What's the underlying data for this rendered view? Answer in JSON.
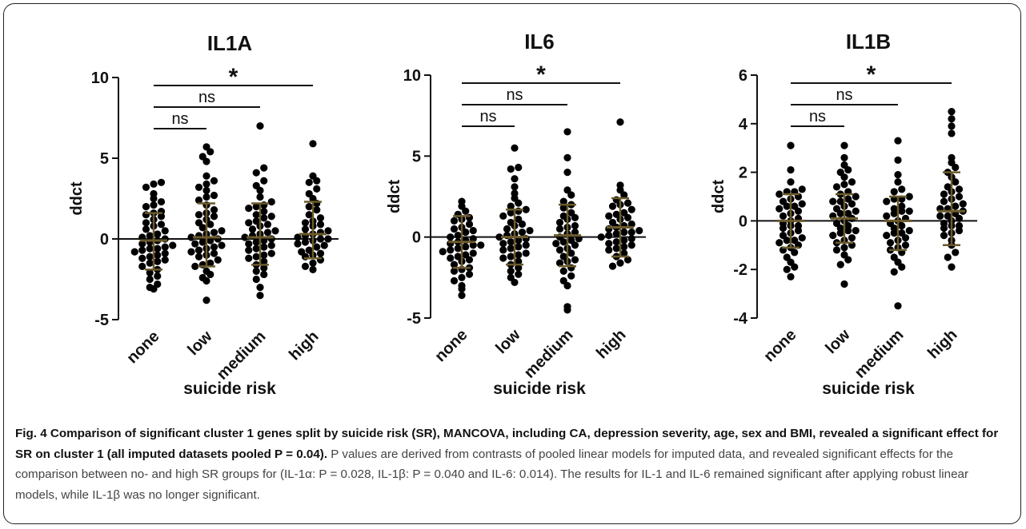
{
  "chart_data": [
    {
      "type": "scatter",
      "title": "IL1A",
      "xlabel": "suicide risk",
      "ylabel": "ddct",
      "categories": [
        "none",
        "low",
        "medium",
        "high"
      ],
      "ylim": [
        -5,
        10
      ],
      "yticks": [
        "-5",
        "0",
        "5",
        "10"
      ],
      "summary": [
        {
          "category": "none",
          "mean": -0.1,
          "sd_low": -1.9,
          "sd_high": 1.6
        },
        {
          "category": "low",
          "mean": 0.1,
          "sd_low": -1.7,
          "sd_high": 2.2
        },
        {
          "category": "medium",
          "mean": 0.1,
          "sd_low": -1.6,
          "sd_high": 2.2
        },
        {
          "category": "high",
          "mean": 0.3,
          "sd_low": -1.2,
          "sd_high": 2.3
        }
      ],
      "points": {
        "none": [
          3.5,
          3.4,
          3.2,
          2.8,
          2.5,
          2.3,
          2.0,
          1.7,
          1.5,
          1.4,
          1.2,
          1.0,
          0.8,
          0.6,
          0.5,
          0.3,
          0.2,
          0.1,
          0.0,
          -0.1,
          -0.2,
          -0.3,
          -0.4,
          -0.5,
          -0.6,
          -0.7,
          -0.8,
          -0.9,
          -1.0,
          -1.1,
          -1.2,
          -1.4,
          -1.5,
          -1.7,
          -1.9,
          -2.1,
          -2.3,
          -2.5,
          -2.8,
          -3.0,
          -3.1,
          0.9,
          2.1,
          -0.6,
          1.6,
          -1.3
        ],
        "low": [
          5.7,
          5.4,
          5.1,
          4.8,
          3.9,
          3.6,
          3.2,
          3.0,
          2.7,
          2.4,
          2.1,
          1.8,
          1.6,
          1.4,
          1.2,
          1.0,
          0.9,
          0.7,
          0.5,
          0.4,
          0.3,
          0.1,
          0.0,
          -0.1,
          -0.2,
          -0.3,
          -0.4,
          -0.5,
          -0.6,
          -0.7,
          -0.8,
          -1.0,
          -1.1,
          -1.3,
          -1.5,
          -1.7,
          -2.0,
          -2.2,
          -2.4,
          -2.6,
          -3.8,
          1.5,
          -0.9,
          2.6,
          0.2,
          -1.6,
          3.4
        ],
        "medium": [
          7.0,
          4.4,
          4.1,
          3.6,
          3.3,
          3.0,
          2.6,
          2.3,
          2.1,
          1.9,
          1.7,
          1.5,
          1.3,
          1.1,
          1.0,
          0.8,
          0.6,
          0.5,
          0.3,
          0.2,
          0.1,
          0.0,
          -0.1,
          -0.2,
          -0.3,
          -0.5,
          -0.6,
          -0.7,
          -0.9,
          -1.0,
          -1.2,
          -1.4,
          -1.6,
          -1.8,
          -2.0,
          -2.2,
          -2.5,
          -3.0,
          -3.5,
          0.9,
          -0.4,
          1.4,
          -1.1,
          0.4,
          2.0
        ],
        "high": [
          5.9,
          3.9,
          3.6,
          3.5,
          3.1,
          2.8,
          2.5,
          2.2,
          2.0,
          1.8,
          1.5,
          1.3,
          1.1,
          0.9,
          0.8,
          0.6,
          0.4,
          0.3,
          0.2,
          0.1,
          0.0,
          -0.1,
          -0.2,
          -0.3,
          -0.4,
          -0.5,
          -0.7,
          -0.9,
          -1.1,
          -1.3,
          -1.5,
          -1.7,
          -1.9,
          0.5,
          -0.8,
          1.0,
          0.0,
          -1.0
        ]
      },
      "annotations": [
        {
          "from": "none",
          "to": "low",
          "label": "ns",
          "level": 1
        },
        {
          "from": "none",
          "to": "medium",
          "label": "ns",
          "level": 2
        },
        {
          "from": "none",
          "to": "high",
          "label": "*",
          "level": 3
        }
      ]
    },
    {
      "type": "scatter",
      "title": "IL6",
      "xlabel": "suicide risk",
      "ylabel": "ddct",
      "categories": [
        "none",
        "low",
        "medium",
        "high"
      ],
      "ylim": [
        -5,
        10
      ],
      "yticks": [
        "-5",
        "0",
        "5",
        "10"
      ],
      "summary": [
        {
          "category": "none",
          "mean": -0.3,
          "sd_low": -1.9,
          "sd_high": 1.3
        },
        {
          "category": "low",
          "mean": 0.0,
          "sd_low": -1.7,
          "sd_high": 1.7
        },
        {
          "category": "medium",
          "mean": 0.1,
          "sd_low": -1.8,
          "sd_high": 2.0
        },
        {
          "category": "high",
          "mean": 0.6,
          "sd_low": -1.2,
          "sd_high": 2.4
        }
      ],
      "points": {
        "none": [
          2.2,
          1.9,
          1.6,
          1.4,
          1.2,
          1.0,
          0.8,
          0.6,
          0.4,
          0.3,
          0.1,
          0.0,
          -0.1,
          -0.2,
          -0.3,
          -0.4,
          -0.5,
          -0.6,
          -0.7,
          -0.8,
          -0.9,
          -1.0,
          -1.1,
          -1.2,
          -1.4,
          -1.5,
          -1.7,
          -1.9,
          -2.1,
          -2.3,
          -2.5,
          -2.7,
          -3.0,
          -3.2,
          -3.6,
          0.5,
          -1.3,
          1.1,
          -0.5,
          -2.0
        ],
        "low": [
          5.5,
          4.3,
          4.2,
          3.6,
          3.1,
          2.7,
          2.4,
          2.1,
          1.9,
          1.7,
          1.5,
          1.3,
          1.1,
          0.9,
          0.7,
          0.5,
          0.4,
          0.2,
          0.1,
          0.0,
          -0.1,
          -0.2,
          -0.3,
          -0.4,
          -0.6,
          -0.7,
          -0.8,
          -1.0,
          -1.1,
          -1.3,
          -1.5,
          -1.7,
          -1.9,
          -2.1,
          -2.3,
          -2.5,
          -2.8,
          0.8,
          -0.5,
          1.6,
          -1.2,
          0.3
        ],
        "medium": [
          6.5,
          4.9,
          4.0,
          2.9,
          2.6,
          2.2,
          2.0,
          1.8,
          1.5,
          1.3,
          1.1,
          0.9,
          0.7,
          0.5,
          0.3,
          0.2,
          0.0,
          -0.1,
          -0.2,
          -0.4,
          -0.5,
          -0.7,
          -0.8,
          -1.0,
          -1.2,
          -1.4,
          -1.6,
          -1.9,
          -2.1,
          -2.4,
          -2.7,
          -3.0,
          -4.3,
          -4.5,
          0.6,
          -0.3,
          1.2,
          -1.5
        ],
        "high": [
          7.1,
          3.2,
          2.9,
          2.6,
          2.3,
          2.1,
          1.9,
          1.7,
          1.5,
          1.4,
          1.2,
          1.1,
          0.9,
          0.8,
          0.6,
          0.5,
          0.4,
          0.3,
          0.2,
          0.1,
          0.0,
          -0.1,
          -0.2,
          -0.3,
          -0.4,
          -0.5,
          -0.7,
          -0.8,
          -1.0,
          -1.2,
          -1.4,
          -1.6,
          -1.8,
          0.7,
          1.3,
          -0.6,
          0.3,
          2.0
        ]
      },
      "annotations": [
        {
          "from": "none",
          "to": "low",
          "label": "ns",
          "level": 1
        },
        {
          "from": "none",
          "to": "medium",
          "label": "ns",
          "level": 2
        },
        {
          "from": "none",
          "to": "high",
          "label": "*",
          "level": 3
        }
      ]
    },
    {
      "type": "scatter",
      "title": "IL1B",
      "xlabel": "suicide risk",
      "ylabel": "ddct",
      "categories": [
        "none",
        "low",
        "medium",
        "high"
      ],
      "ylim": [
        -4,
        6
      ],
      "yticks": [
        "-4",
        "-2",
        "0",
        "2",
        "4",
        "6"
      ],
      "summary": [
        {
          "category": "none",
          "mean": 0.0,
          "sd_low": -1.1,
          "sd_high": 1.1
        },
        {
          "category": "low",
          "mean": 0.1,
          "sd_low": -0.9,
          "sd_high": 1.1
        },
        {
          "category": "medium",
          "mean": 0.0,
          "sd_low": -1.2,
          "sd_high": 1.0
        },
        {
          "category": "high",
          "mean": 0.4,
          "sd_low": -1.0,
          "sd_high": 2.0
        }
      ],
      "points": {
        "none": [
          3.1,
          2.1,
          1.6,
          1.3,
          1.2,
          1.1,
          1.0,
          0.9,
          0.8,
          0.7,
          0.6,
          0.5,
          0.4,
          0.3,
          0.2,
          0.1,
          0.0,
          -0.1,
          -0.2,
          -0.3,
          -0.4,
          -0.5,
          -0.6,
          -0.7,
          -0.8,
          -0.9,
          -1.0,
          -1.1,
          -1.2,
          -1.3,
          -1.5,
          -1.7,
          -1.9,
          -2.0,
          -2.3,
          0.6,
          -0.2,
          1.2,
          -0.8
        ],
        "low": [
          3.1,
          2.6,
          2.3,
          2.1,
          2.0,
          1.8,
          1.6,
          1.4,
          1.2,
          1.1,
          1.0,
          0.9,
          0.8,
          0.7,
          0.6,
          0.5,
          0.4,
          0.3,
          0.2,
          0.1,
          0.0,
          -0.1,
          -0.2,
          -0.3,
          -0.4,
          -0.5,
          -0.6,
          -0.7,
          -0.8,
          -0.9,
          -1.0,
          -1.1,
          -1.2,
          -1.4,
          -1.6,
          -1.8,
          -2.6,
          0.3,
          -0.4,
          1.5,
          0.8
        ],
        "medium": [
          3.3,
          2.5,
          1.9,
          1.6,
          1.3,
          1.2,
          1.0,
          0.9,
          0.8,
          0.6,
          0.5,
          0.4,
          0.3,
          0.2,
          0.1,
          0.0,
          -0.1,
          -0.2,
          -0.3,
          -0.4,
          -0.5,
          -0.6,
          -0.7,
          -0.8,
          -0.9,
          -1.0,
          -1.1,
          -1.2,
          -1.3,
          -1.5,
          -1.7,
          -1.9,
          -2.1,
          -3.5,
          0.4,
          -0.5,
          0.9
        ],
        "high": [
          4.5,
          4.2,
          3.9,
          3.6,
          2.4,
          2.2,
          2.0,
          1.8,
          1.6,
          1.4,
          1.3,
          1.1,
          1.0,
          0.9,
          0.8,
          0.7,
          0.6,
          0.5,
          0.4,
          0.3,
          0.2,
          0.1,
          0.0,
          -0.1,
          -0.2,
          -0.3,
          -0.4,
          -0.5,
          -0.6,
          -0.8,
          -1.0,
          -1.3,
          -1.5,
          -1.9,
          0.5,
          0.2,
          1.2,
          -0.2,
          2.6
        ]
      },
      "annotations": [
        {
          "from": "none",
          "to": "low",
          "label": "ns",
          "level": 1
        },
        {
          "from": "none",
          "to": "medium",
          "label": "ns",
          "level": 2
        },
        {
          "from": "none",
          "to": "high",
          "label": "*",
          "level": 3
        }
      ]
    }
  ],
  "colors": {
    "points": "#000000",
    "error_bars": "#6b5a2c",
    "axis": "#111111",
    "caption_text": "#444444"
  },
  "caption": {
    "lead": "Fig. 4 Comparison of significant cluster 1 genes split by suicide risk (SR), MANCOVA, including CA, depression severity, age, sex and BMI, revealed a significant effect for SR on cluster 1 (all imputed datasets pooled P = 0.04).",
    "rest": "P values are derived from contrasts of pooled linear models for imputed data, and revealed significant effects for the comparison between no- and high SR groups for (IL-1α: P = 0.028, IL-1β: P = 0.040 and IL-6: 0.014). The results for IL-1 and IL-6 remained significant after applying robust linear models, while IL-1β was no longer significant."
  }
}
